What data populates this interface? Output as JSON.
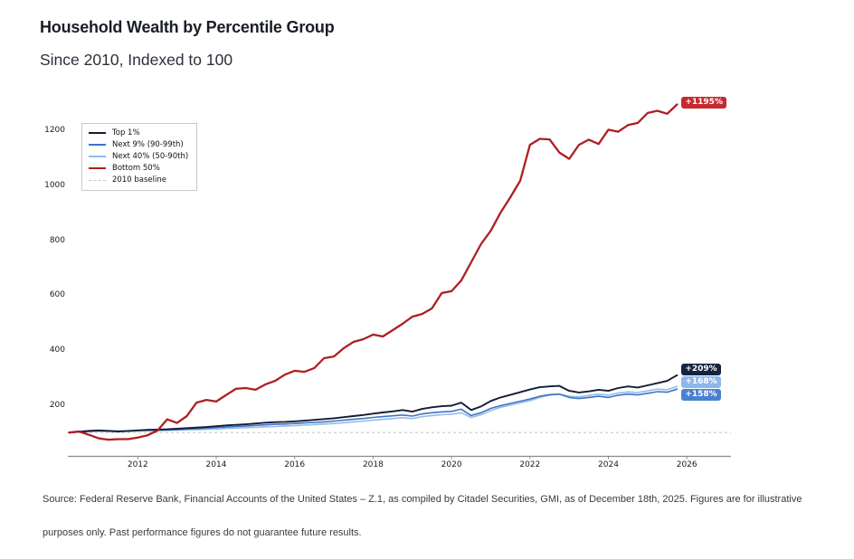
{
  "header": {
    "title": "Household Wealth by Percentile Group",
    "subtitle": "Since 2010, Indexed to 100"
  },
  "chart_data": {
    "type": "line",
    "title": "Household Wealth by Percentile Group",
    "subtitle": "Since 2010, Indexed to 100",
    "x_start": 2010.25,
    "x_step": 0.25,
    "x_ticks": [
      2012,
      2014,
      2016,
      2018,
      2020,
      2022,
      2024,
      2026
    ],
    "y_ticks": [
      200,
      400,
      600,
      800,
      1000,
      1200
    ],
    "ylim": [
      40,
      1330
    ],
    "grid": false,
    "legend_position": "upper-left",
    "baseline": {
      "label": "2010 baseline",
      "value": 100,
      "color": "#c9c9c9"
    },
    "series": [
      {
        "name": "Top 1%",
        "color": "#131c33",
        "line_width": 1.9,
        "end_label": "+209%",
        "end_label_bg": "#16243e",
        "values": [
          100,
          103,
          106,
          108,
          106,
          104,
          106,
          108,
          110,
          111,
          112,
          114,
          116,
          118,
          120,
          123,
          126,
          128,
          130,
          133,
          136,
          138,
          139,
          141,
          143,
          146,
          149,
          152,
          156,
          160,
          164,
          169,
          173,
          177,
          182,
          176,
          186,
          192,
          196,
          198,
          209,
          182,
          195,
          215,
          228,
          237,
          247,
          257,
          265,
          268,
          270,
          252,
          246,
          250,
          256,
          252,
          262,
          268,
          264,
          272,
          280,
          288,
          309
        ]
      },
      {
        "name": "Next 9% (90-99th)",
        "color": "#3e74c2",
        "line_width": 1.6,
        "end_label": "+158%",
        "end_label_bg": "#4a80d2",
        "values": [
          100,
          102,
          104,
          106,
          105,
          104,
          105,
          107,
          108,
          109,
          110,
          111,
          113,
          114,
          116,
          118,
          120,
          122,
          124,
          126,
          128,
          130,
          131,
          133,
          135,
          137,
          139,
          142,
          145,
          148,
          151,
          155,
          158,
          161,
          164,
          160,
          168,
          172,
          175,
          177,
          185,
          162,
          172,
          188,
          198,
          206,
          214,
          222,
          232,
          238,
          240,
          228,
          224,
          228,
          232,
          228,
          236,
          240,
          237,
          243,
          249,
          247,
          258
        ]
      },
      {
        "name": "Next 40% (50-90th)",
        "color": "#93bce9",
        "line_width": 1.6,
        "end_label": "+168%",
        "end_label_bg": "#8db7eb",
        "values": [
          100,
          104,
          107,
          108,
          107,
          106,
          106,
          107,
          107,
          107,
          108,
          109,
          110,
          111,
          112,
          113,
          115,
          116,
          118,
          119,
          121,
          122,
          124,
          125,
          127,
          129,
          131,
          133,
          136,
          139,
          142,
          145,
          148,
          151,
          154,
          151,
          158,
          162,
          165,
          167,
          172,
          155,
          165,
          180,
          192,
          200,
          208,
          216,
          228,
          236,
          240,
          232,
          230,
          235,
          240,
          236,
          244,
          248,
          246,
          252,
          258,
          256,
          268
        ]
      },
      {
        "name": "Bottom 50%",
        "color": "#ad1f23",
        "line_width": 2.3,
        "end_label": "+1195%",
        "end_label_bg": "#c62a2e",
        "values": [
          100,
          104,
          92,
          79,
          74,
          76,
          76,
          82,
          90,
          107,
          148,
          135,
          160,
          209,
          219,
          213,
          236,
          259,
          262,
          256,
          275,
          288,
          311,
          325,
          321,
          335,
          371,
          377,
          407,
          430,
          440,
          457,
          450,
          473,
          496,
          522,
          532,
          552,
          608,
          615,
          654,
          720,
          786,
          835,
          901,
          957,
          1017,
          1148,
          1170,
          1168,
          1120,
          1097,
          1148,
          1167,
          1151,
          1203,
          1196,
          1220,
          1228,
          1264,
          1272,
          1261,
          1295
        ]
      }
    ]
  },
  "footer": {
    "line1": "Source: Federal Reserve Bank, Financial Accounts of the United States – Z.1, as compiled by Citadel Securities, GMI, as of December 18th, 2025. Figures are for illustrative",
    "line2": "purposes only. Past performance figures do not guarantee future results."
  }
}
